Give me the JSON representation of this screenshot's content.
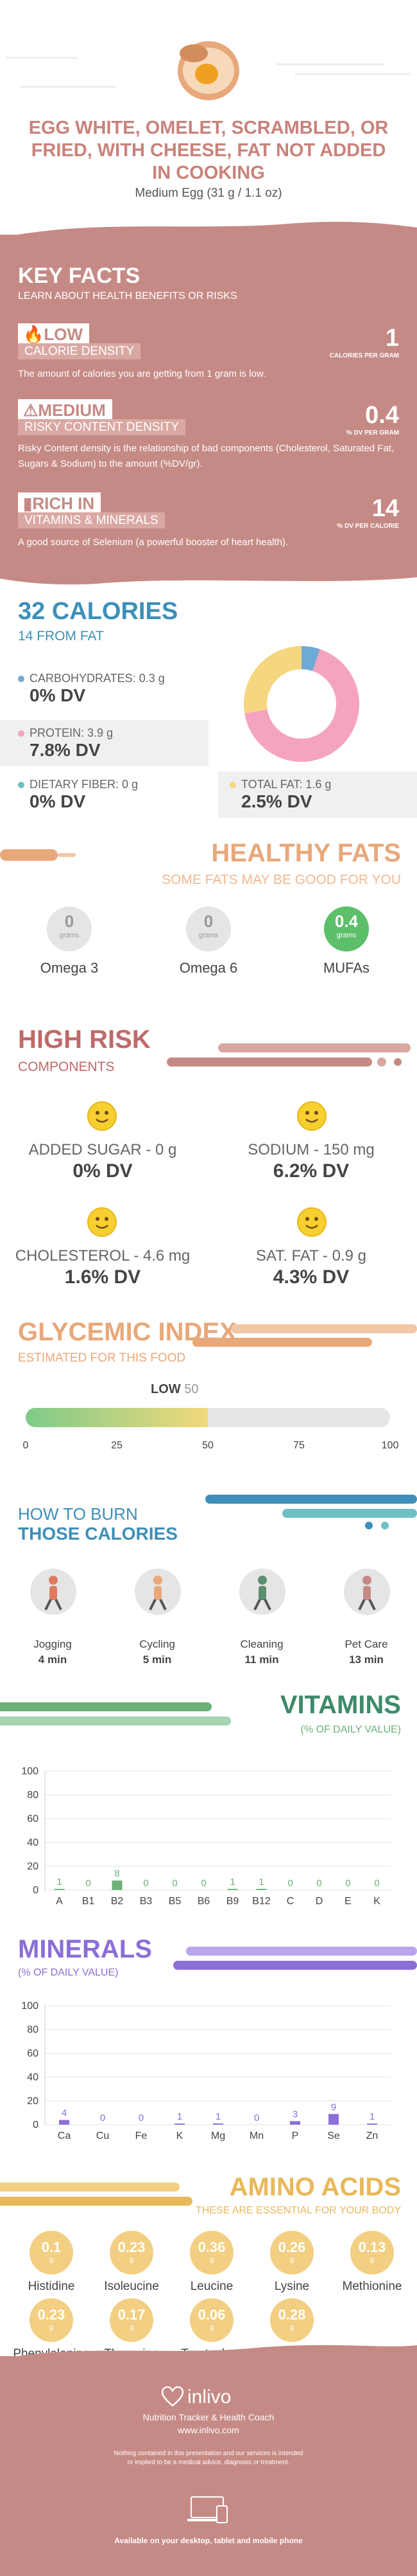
{
  "header": {
    "title": "EGG WHITE, OMELET, SCRAMBLED, OR FRIED, WITH CHEESE, FAT NOT ADDED IN COOKING",
    "serving": "Medium Egg (31 g / 1.1 oz)"
  },
  "key_facts": {
    "title": "KEY FACTS",
    "subtitle": "LEARN ABOUT HEALTH BENEFITS OR RISKS",
    "calorie": {
      "level": "LOW",
      "name": "CALORIE DENSITY",
      "value": "1",
      "unit": "CALORIES PER GRAM",
      "desc": "The amount of calories you are getting from 1 gram is low."
    },
    "risk": {
      "level": "MEDIUM",
      "name": "RISKY CONTENT DENSITY",
      "value": "0.4",
      "unit": "% DV PER GRAM",
      "desc": "Risky Content density is the relationship of bad components (Cholesterol, Saturated Fat, Sugars & Sodium) to the amount (%DV/gr)."
    },
    "rich": {
      "level": "RICH  IN",
      "name": "VITAMINS & MINERALS",
      "value": "14",
      "unit": "% DV PER CALORIE",
      "desc": "A good source of Selenium (a powerful booster of heart health)."
    }
  },
  "calories": {
    "title": "32 CALORIES",
    "subtitle": "14 FROM FAT",
    "carbs": {
      "label": "CARBOHYDRATES: 0.3 g",
      "dv": "0% DV"
    },
    "protein": {
      "label": "PROTEIN: 3.9 g",
      "dv": "7.8% DV"
    },
    "fiber": {
      "label": "DIETARY FIBER: 0 g",
      "dv": "0% DV"
    },
    "fat": {
      "label": "TOTAL FAT: 1.6 g",
      "dv": "2.5% DV"
    },
    "donut": [
      {
        "name": "carbs",
        "value": 0.3,
        "color": "#6fa9d6"
      },
      {
        "name": "protein",
        "value": 3.9,
        "color": "#f4a3c0"
      },
      {
        "name": "fat",
        "value": 1.6,
        "color": "#f5d77f"
      }
    ]
  },
  "healthy_fats": {
    "title": "HEALTHY FATS",
    "subtitle": "SOME FATS MAY BE GOOD FOR YOU",
    "items": [
      {
        "value": "0",
        "unit": "grams",
        "label": "Omega 3"
      },
      {
        "value": "0",
        "unit": "grams",
        "label": "Omega 6"
      },
      {
        "value": "0.4",
        "unit": "grams",
        "label": "MUFAs"
      }
    ]
  },
  "high_risk": {
    "title": "HIGH RISK",
    "subtitle": "COMPONENTS",
    "items": [
      {
        "label": "ADDED SUGAR - 0 g",
        "dv": "0% DV"
      },
      {
        "label": "SODIUM - 150 mg",
        "dv": "6.2% DV"
      },
      {
        "label": "CHOLESTEROL - 4.6 mg",
        "dv": "1.6% DV"
      },
      {
        "label": "SAT. FAT - 0.9 g",
        "dv": "4.3% DV"
      }
    ]
  },
  "glycemic": {
    "title": "GLYCEMIC INDEX",
    "subtitle": "ESTIMATED FOR THIS FOOD",
    "level": "LOW",
    "value": "50",
    "ticks": [
      "0",
      "25",
      "50",
      "75",
      "100"
    ]
  },
  "burn": {
    "title1": "HOW TO BURN",
    "title2": "THOSE CALORIES",
    "items": [
      {
        "label": "Jogging",
        "time": "4 min"
      },
      {
        "label": "Cycling",
        "time": "5 min"
      },
      {
        "label": "Cleaning",
        "time": "11 min"
      },
      {
        "label": "Pet Care",
        "time": "13 min"
      }
    ]
  },
  "vitamins": {
    "title": "VITAMINS",
    "subtitle": "(% OF DAILY VALUE)",
    "color": "#6cb07a",
    "chart_data": {
      "type": "bar",
      "categories": [
        "A",
        "B1",
        "B2",
        "B3",
        "B5",
        "B6",
        "B9",
        "B12",
        "C",
        "D",
        "E",
        "K"
      ],
      "values": [
        1,
        0,
        8,
        0,
        0,
        0,
        1,
        1,
        0,
        0,
        0,
        0
      ],
      "ylim": [
        0,
        100
      ],
      "yticks": [
        "0",
        "20",
        "40",
        "60",
        "80",
        "100"
      ]
    }
  },
  "minerals": {
    "title": "MINERALS",
    "subtitle": "(% OF DAILY VALUE)",
    "color": "#8b6fd6",
    "chart_data": {
      "type": "bar",
      "categories": [
        "Ca",
        "Cu",
        "Fe",
        "K",
        "Mg",
        "Mn",
        "P",
        "Se",
        "Zn"
      ],
      "values": [
        4,
        0,
        0,
        1,
        1,
        0,
        3,
        9,
        1
      ],
      "ylim": [
        0,
        100
      ],
      "yticks": [
        "0",
        "20",
        "40",
        "60",
        "80",
        "100"
      ]
    }
  },
  "amino": {
    "title": "AMINO ACIDS",
    "subtitle": "THESE ARE ESSENTIAL FOR YOUR BODY",
    "unit": "g",
    "items": [
      {
        "value": "0.1",
        "label": "Histidine"
      },
      {
        "value": "0.23",
        "label": "Isoleucine"
      },
      {
        "value": "0.36",
        "label": "Leucine"
      },
      {
        "value": "0.26",
        "label": "Lysine"
      },
      {
        "value": "0.13",
        "label": "Methionine"
      },
      {
        "value": "0.23",
        "label": "Phenylalanine"
      },
      {
        "value": "0.17",
        "label": "Threonine"
      },
      {
        "value": "0.06",
        "label": "Tryptophan"
      },
      {
        "value": "0.28",
        "label": "Valine"
      }
    ]
  },
  "footer": {
    "brand": "inlivo",
    "tagline": "Nutrition Tracker & Health Coach",
    "url": "www.inlivo.com",
    "disclaimer": "Nothing contained in this presentation and our services is intended or implied to be a medical advice, diagnosis or treatment.",
    "available": "Available on your desktop, tablet and mobile phone"
  }
}
